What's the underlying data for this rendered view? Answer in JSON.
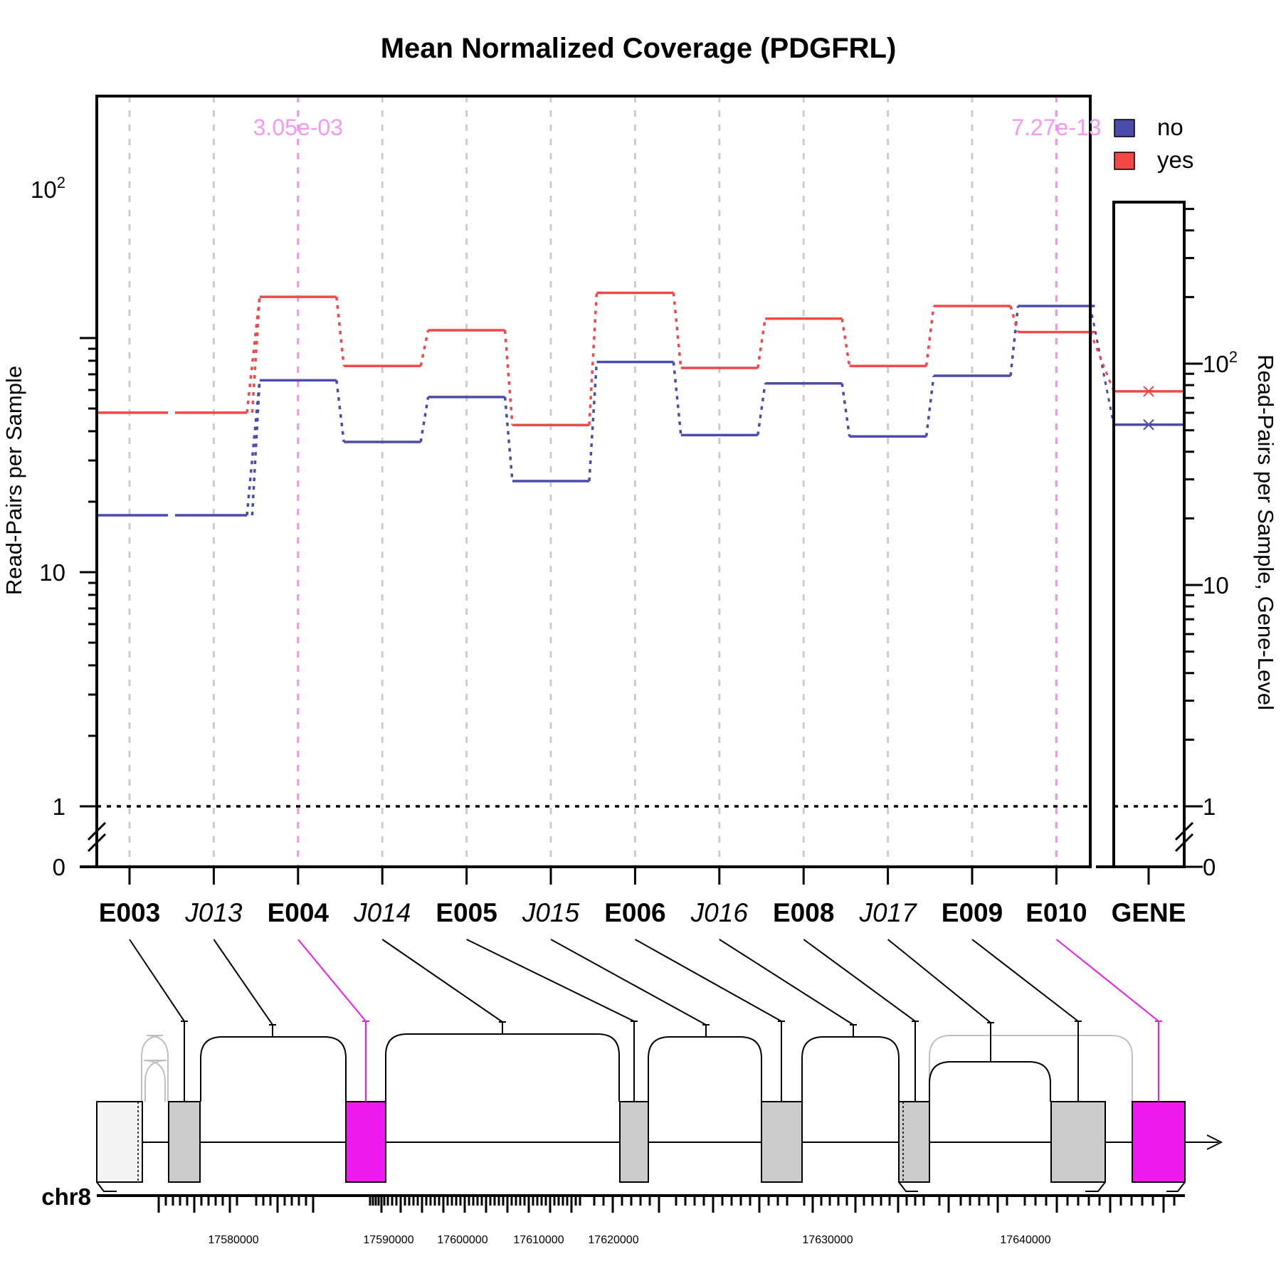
{
  "chart_data": {
    "type": "line",
    "title": "Mean Normalized Coverage (PDGFRL)",
    "ylabel": "Read-Pairs per Sample",
    "ylabel_right": "Read-Pairs per Sample, Gene-Level",
    "yscale": "log (0 and 1 shown below axis break)",
    "y_ticks": [
      "0",
      "1",
      "10",
      "10^2"
    ],
    "y_ticks_right": [
      "0",
      "1",
      "10",
      "10^2"
    ],
    "features": [
      {
        "label": "E003",
        "kind": "exon",
        "highlight": false
      },
      {
        "label": "J013",
        "kind": "junction",
        "highlight": false
      },
      {
        "label": "E004",
        "kind": "exon",
        "highlight": true
      },
      {
        "label": "J014",
        "kind": "junction",
        "highlight": false
      },
      {
        "label": "E005",
        "kind": "exon",
        "highlight": false
      },
      {
        "label": "J015",
        "kind": "junction",
        "highlight": false
      },
      {
        "label": "E006",
        "kind": "exon",
        "highlight": false
      },
      {
        "label": "J016",
        "kind": "junction",
        "highlight": false
      },
      {
        "label": "E008",
        "kind": "exon",
        "highlight": false
      },
      {
        "label": "J017",
        "kind": "junction",
        "highlight": false
      },
      {
        "label": "E009",
        "kind": "exon",
        "highlight": false
      },
      {
        "label": "E010",
        "kind": "exon",
        "highlight": true
      }
    ],
    "gene_label": "GENE",
    "series": [
      {
        "name": "no",
        "color": "#4B4BAE",
        "values": [
          17.5,
          17.5,
          66,
          36,
          56,
          24.5,
          79,
          38.5,
          64,
          38,
          69,
          137
        ],
        "gene_value": 53
      },
      {
        "name": "yes",
        "color": "#F24848",
        "values": [
          48,
          48,
          150,
          76,
          108,
          42.5,
          156,
          74.5,
          121,
          76,
          137,
          106
        ],
        "gene_value": 75
      }
    ],
    "pvalues": [
      {
        "feature": "E004",
        "label": "3.05e-03"
      },
      {
        "feature": "E010",
        "label": "7.27e-13"
      }
    ],
    "gene_track": {
      "chromosome": "chr8",
      "tick_labels": [
        "17580000",
        "17590000",
        "17600000",
        "17610000",
        "17620000",
        "17630000",
        "17640000"
      ]
    },
    "legend_position": "top-right",
    "grid": "vertical dashed"
  }
}
